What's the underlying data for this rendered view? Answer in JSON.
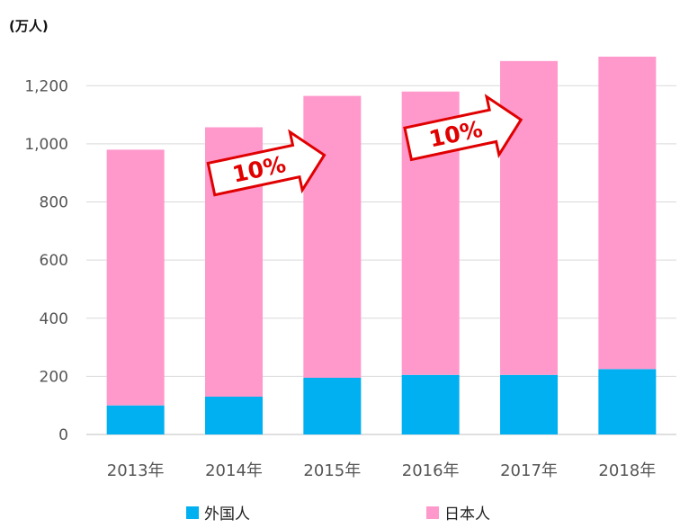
{
  "chart_data": {
    "type": "bar",
    "stacked": true,
    "unit_label": "(万人)",
    "categories": [
      "2013年",
      "2014年",
      "2015年",
      "2016年",
      "2017年",
      "2018年"
    ],
    "series": [
      {
        "name": "外国人",
        "color": "#00b0f0",
        "values": [
          100,
          130,
          195,
          205,
          205,
          225
        ]
      },
      {
        "name": "日本人",
        "color": "#ff99cc",
        "values": [
          880,
          927,
          970,
          975,
          1080,
          1075
        ]
      }
    ],
    "totals": [
      980,
      1057,
      1165,
      1180,
      1285,
      1300
    ],
    "ylim": [
      0,
      1300
    ],
    "yticks": [
      0,
      200,
      400,
      600,
      800,
      1000,
      1200
    ],
    "ytick_labels": [
      "0",
      "200",
      "400",
      "600",
      "800",
      "1,000",
      "1,200"
    ],
    "grid": true,
    "legend_position": "bottom",
    "annotations": [
      {
        "text": "10%",
        "from_category": "2014年",
        "to_category": "2015年",
        "color": "#e00000"
      },
      {
        "text": "10%",
        "from_category": "2016年",
        "to_category": "2017年",
        "color": "#e00000"
      }
    ]
  }
}
